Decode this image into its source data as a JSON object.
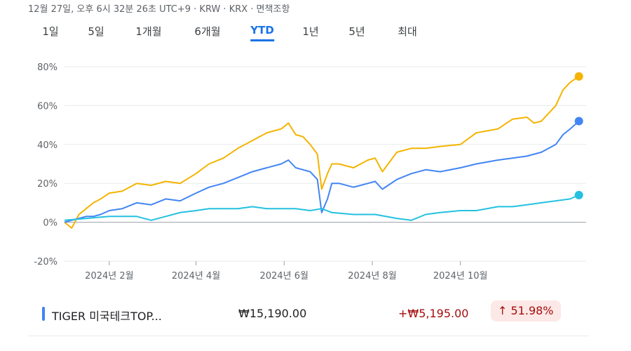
{
  "header": {
    "meta": "12월 27일, 오후 6시 32분 26초 UTC+9 · KRW · KRX · 면책조항"
  },
  "tabs": [
    {
      "label": "1일",
      "active": false
    },
    {
      "label": "5일",
      "active": false
    },
    {
      "label": "1개월",
      "active": false
    },
    {
      "label": "6개월",
      "active": false
    },
    {
      "label": "YTD",
      "active": true
    },
    {
      "label": "1년",
      "active": false
    },
    {
      "label": "5년",
      "active": false
    },
    {
      "label": "최대",
      "active": false
    }
  ],
  "colors": {
    "yellow": "#F4B400",
    "blue": "#4285F4",
    "teal": "#24C1E0",
    "up": "#A50E0E",
    "up_bg": "#FCE8E6",
    "grid": "#E8EAED"
  },
  "chart_data": {
    "type": "line",
    "ylim": [
      -20,
      80
    ],
    "y_ticks": [
      "80%",
      "60%",
      "40%",
      "20%",
      "0%",
      "-20%"
    ],
    "y_tick_values": [
      80,
      60,
      40,
      20,
      0,
      -20
    ],
    "x_ticks": [
      "2024년 2월",
      "2024년 4월",
      "2024년 6월",
      "2024년 8월",
      "2024년 10월"
    ],
    "x_tick_days": [
      31,
      91,
      152,
      213,
      274
    ],
    "x_range": [
      0,
      361
    ],
    "grid": true,
    "series": [
      {
        "color": "#F4B400",
        "x": [
          0,
          5,
          10,
          15,
          20,
          25,
          31,
          40,
          50,
          60,
          70,
          80,
          91,
          100,
          110,
          120,
          130,
          140,
          150,
          155,
          160,
          165,
          170,
          175,
          178,
          182,
          185,
          190,
          200,
          210,
          215,
          220,
          230,
          240,
          250,
          260,
          274,
          285,
          300,
          310,
          320,
          325,
          330,
          340,
          345,
          350,
          356
        ],
        "y": [
          0,
          -3,
          4,
          7,
          10,
          12,
          15,
          16,
          20,
          19,
          21,
          20,
          25,
          30,
          33,
          38,
          42,
          46,
          48,
          51,
          45,
          44,
          40,
          35,
          17,
          25,
          30,
          30,
          28,
          32,
          33,
          26,
          36,
          38,
          38,
          39,
          40,
          46,
          48,
          53,
          54,
          51,
          52,
          60,
          68,
          72,
          75
        ]
      },
      {
        "color": "#4285F4",
        "x": [
          0,
          5,
          10,
          15,
          20,
          25,
          31,
          40,
          50,
          60,
          70,
          80,
          91,
          100,
          110,
          120,
          130,
          140,
          150,
          155,
          160,
          165,
          170,
          175,
          178,
          182,
          185,
          190,
          200,
          210,
          215,
          220,
          230,
          240,
          250,
          260,
          274,
          285,
          300,
          310,
          320,
          325,
          330,
          340,
          345,
          350,
          356
        ],
        "y": [
          0,
          1,
          2,
          3,
          3,
          4,
          6,
          7,
          10,
          9,
          12,
          11,
          15,
          18,
          20,
          23,
          26,
          28,
          30,
          32,
          28,
          27,
          26,
          22,
          5,
          12,
          20,
          20,
          18,
          20,
          21,
          17,
          22,
          25,
          27,
          26,
          28,
          30,
          32,
          33,
          34,
          35,
          36,
          40,
          45,
          48,
          52
        ]
      },
      {
        "color": "#24C1E0",
        "x": [
          0,
          31,
          50,
          60,
          70,
          80,
          91,
          100,
          110,
          120,
          130,
          140,
          150,
          160,
          170,
          178,
          185,
          200,
          215,
          230,
          240,
          250,
          260,
          274,
          285,
          300,
          310,
          320,
          330,
          340,
          350,
          356
        ],
        "y": [
          1,
          3,
          3,
          1,
          3,
          5,
          6,
          7,
          7,
          7,
          8,
          7,
          7,
          7,
          6,
          7,
          5,
          4,
          4,
          2,
          1,
          4,
          5,
          6,
          6,
          8,
          8,
          9,
          10,
          11,
          12,
          14
        ]
      }
    ]
  },
  "rows": [
    {
      "name": "TIGER 미국테크TOP...",
      "price": "₩15,190.00",
      "change": "+₩5,195.00",
      "pct": "51.98%",
      "arrow": "↑"
    }
  ]
}
